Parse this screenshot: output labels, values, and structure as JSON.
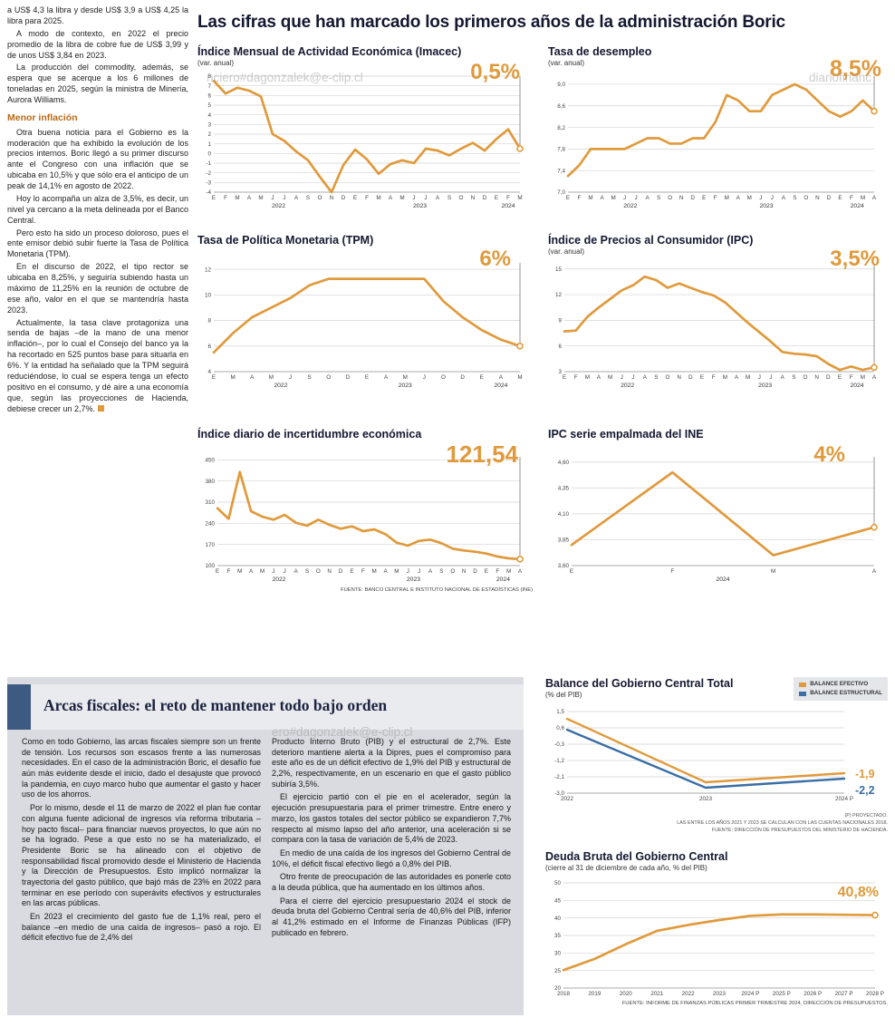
{
  "colors": {
    "orange": "#E09A3C",
    "blue": "#3B6EA5",
    "navy": "#141830",
    "heading_orange": "#b96a15"
  },
  "watermarks": {
    "w1": "nciero#dagonzalek@e-clip.cl",
    "w2": "diariofinanc",
    "w3": "ero#dagonzalek@e-clip.cl"
  },
  "left_article": {
    "p1": "a US$ 4,3 la libra y desde US$ 3,9 a US$ 4,25 la libra para 2025.",
    "p2": "A modo de contexto, en 2022 el precio promedio de la libra de cobre fue de US$ 3,99 y de unos US$ 3,84 en 2023.",
    "p3": "La producción del commodity, además, se espera que se acerque a los 6 millones de toneladas en 2025, según la ministra de Minería, Aurora Williams.",
    "subhead": "Menor inflación",
    "p4": "Otra buena noticia para el Gobierno es la moderación que ha exhibido la evolución de los precios internos. Boric llegó a su primer discurso ante el Congreso con una inflación que se ubicaba en 10,5% y que sólo era el anticipo de un peak de 14,1% en agosto de 2022.",
    "p5": "Hoy lo acompaña un alza de 3,5%, es decir, un nivel ya cercano a la meta delineada por el Banco Central.",
    "p6": "Pero esto ha sido un proceso doloroso, pues el ente emisor debió subir fuerte la Tasa de Política Monetaria (TPM).",
    "p7": "En el discurso de 2022, el tipo rector se ubicaba en 8,25%, y seguiría subiendo hasta un máximo de 11,25% en la reunión de octubre de ese año, valor en el que se mantendría hasta 2023.",
    "p8": "Actualmente, la tasa clave protagoniza una senda de bajas –de la mano de una menor inflación–, por lo cual el Consejo del banco ya la ha recortado en 525 puntos base para situarla en 6%. Y la entidad ha señalado que la TPM seguirá reduciéndose, lo cual se espera tenga un efecto positivo en el consumo, y dé aire a una economía que, según las proyecciones de Hacienda, debiese crecer un 2,7%."
  },
  "main_title": "Las cifras que han marcado los primeros años de la administración Boric",
  "source_top": "FUENTE: BANCO CENTRAL E INSTITUTO NACIONAL DE ESTADÍSTICAS (INE)",
  "fiscal": {
    "title": "Arcas fiscales: el reto de mantener todo bajo orden",
    "col1": [
      "Como en todo Gobierno, las arcas fiscales siempre son un frente de tensión. Los recursos son escasos frente a las numerosas necesidades. En el caso de la administración Boric, el desafío fue aún más evidente desde el inicio, dado el desajuste que provocó la pandemia, en cuyo marco hubo que aumentar el gasto y hacer uso de los ahorros.",
      "Por lo mismo, desde el 11 de marzo de 2022 el plan fue contar con alguna fuente adicional de ingresos vía reforma tributaria –hoy pacto fiscal– para financiar nuevos proyectos, lo que aún no se ha logrado. Pese a que esto no se ha materializado, el Presidente Boric se ha alineado con el objetivo de responsabilidad fiscal promovido desde el Ministerio de Hacienda y la Dirección de Presupuestos. Esto implicó normalizar la trayectoria del gasto público, que bajó más de 23% en 2022 para terminar en ese período con superávits efectivos y estructurales en las arcas públicas.",
      "En 2023 el crecimiento del gasto fue de 1,1% real, pero el balance –en medio de una caída de ingresos– pasó a rojo. El déficit efectivo fue de 2,4% del"
    ],
    "col2": [
      "Producto Interno Bruto (PIB) y el estructural de 2,7%. Este deterioro mantiene alerta a la Dipres, pues el compromiso para este año es de un déficit efectivo de 1,9% del PIB y estructural de 2,2%, respectivamente, en un escenario en que el gasto público subiría 3,5%.",
      "El ejercicio partió con el pie en el acelerador, según la ejecución presupuestaria para el primer trimestre. Entre enero y marzo, los gastos totales del sector público se expandieron 7,7% respecto al mismo lapso del año anterior, una aceleración si se compara con la tasa de variación de 5,4% de 2023.",
      "En medio de una caída de los ingresos del Gobierno Central de 10%, el déficit fiscal efectivo llegó a 0,8% del PIB.",
      "Otro frente de preocupación de las autoridades es ponerle coto a la deuda pública, que ha aumentado en los últimos años.",
      "Para el cierre del ejercicio presupuestario 2024 el stock de deuda bruta del Gobierno Central sería de 40,6% del PIB, inferior al 41,2% estimado en el Informe de Finanzas Públicas (IFP) publicado en febrero."
    ]
  },
  "chart_data": [
    {
      "type": "line",
      "title": "Índice Mensual de Actividad Económica (Imacec)",
      "subtitle": "(var. anual)",
      "value_label": "0,5%",
      "ylim": [
        -4,
        8
      ],
      "ml": 18,
      "marker_line": true,
      "yticks": [
        [
          8,
          "8"
        ],
        [
          7,
          "7"
        ],
        [
          6,
          "6"
        ],
        [
          5,
          "5"
        ],
        [
          4,
          "4"
        ],
        [
          3,
          "3"
        ],
        [
          2,
          "2"
        ],
        [
          1,
          "1"
        ],
        [
          0,
          "0"
        ],
        [
          -1,
          "-1"
        ],
        [
          -2,
          "-2"
        ],
        [
          -3,
          "-3"
        ],
        [
          -4,
          "-4"
        ]
      ],
      "xlabels": [
        "E",
        "F",
        "M",
        "A",
        "M",
        "J",
        "J",
        "A",
        "S",
        "O",
        "N",
        "D",
        "E",
        "F",
        "M",
        "A",
        "M",
        "J",
        "J",
        "A",
        "S",
        "O",
        "N",
        "D",
        "E",
        "F",
        "M"
      ],
      "years": [
        [
          "2022",
          5.5
        ],
        [
          "2023",
          17.5
        ],
        [
          "2024",
          25
        ]
      ],
      "series": [
        {
          "name": "Imacec",
          "color": "#E09A3C",
          "values": [
            7.5,
            6.2,
            6.8,
            6.5,
            5.9,
            2.0,
            1.3,
            0.2,
            -0.7,
            -2.4,
            -4.0,
            -1.2,
            0.4,
            -0.6,
            -2.1,
            -1.1,
            -0.7,
            -1.0,
            0.5,
            0.3,
            -0.2,
            0.5,
            1.1,
            0.3,
            1.5,
            2.5,
            0.5
          ]
        }
      ]
    },
    {
      "type": "line",
      "title": "Tasa de desempleo",
      "subtitle": "(var. anual)",
      "value_label": "8,5%",
      "ylim": [
        7.0,
        9.15
      ],
      "ml": 22,
      "marker_line": true,
      "yticks": [
        [
          9.0,
          "9,0"
        ],
        [
          8.6,
          "8,6"
        ],
        [
          8.2,
          "8,2"
        ],
        [
          7.8,
          "7,8"
        ],
        [
          7.4,
          "7,4"
        ],
        [
          7.0,
          "7,0"
        ]
      ],
      "xlabels": [
        "E",
        "F",
        "M",
        "A",
        "M",
        "J",
        "J",
        "A",
        "S",
        "O",
        "N",
        "D",
        "E",
        "F",
        "M",
        "A",
        "M",
        "J",
        "J",
        "A",
        "S",
        "O",
        "N",
        "D",
        "E",
        "F",
        "M",
        "A"
      ],
      "years": [
        [
          "2022",
          5.5
        ],
        [
          "2023",
          17.5
        ],
        [
          "2024",
          25.5
        ]
      ],
      "series": [
        {
          "name": "Desempleo",
          "color": "#E09A3C",
          "values": [
            7.3,
            7.5,
            7.8,
            7.8,
            7.8,
            7.8,
            7.9,
            8.0,
            8.0,
            7.9,
            7.9,
            8.0,
            8.0,
            8.3,
            8.8,
            8.7,
            8.5,
            8.5,
            8.8,
            8.9,
            9.0,
            8.9,
            8.7,
            8.5,
            8.4,
            8.5,
            8.7,
            8.5
          ]
        }
      ]
    },
    {
      "type": "line",
      "title": "Tasa de Política Monetaria (TPM)",
      "subtitle": "",
      "value_label": "6%",
      "ylim": [
        4,
        12.5
      ],
      "ml": 18,
      "marker_line": true,
      "yticks": [
        [
          12,
          "12"
        ],
        [
          10,
          "10"
        ],
        [
          8,
          "8"
        ],
        [
          6,
          "6"
        ],
        [
          4,
          "4"
        ]
      ],
      "xlabels": [
        "E",
        "M",
        "A",
        "M",
        "J",
        "S",
        "O",
        "D",
        "E",
        "A",
        "M",
        "J",
        "O",
        "D",
        "E",
        "A",
        "M"
      ],
      "years": [
        [
          "2022",
          3.5
        ],
        [
          "2023",
          10
        ],
        [
          "2024",
          15
        ]
      ],
      "series": [
        {
          "name": "TPM",
          "color": "#E09A3C",
          "values": [
            5.5,
            7.0,
            8.25,
            9.0,
            9.75,
            10.75,
            11.25,
            11.25,
            11.25,
            11.25,
            11.25,
            11.25,
            9.5,
            8.25,
            7.25,
            6.5,
            6.0
          ]
        }
      ]
    },
    {
      "type": "line",
      "title": "Índice de Precios al Consumidor (IPC)",
      "subtitle": "(var. anual)",
      "value_label": "3,5%",
      "ylim": [
        3,
        15.5
      ],
      "ml": 18,
      "marker_line": true,
      "yticks": [
        [
          15,
          "15"
        ],
        [
          12,
          "12"
        ],
        [
          9,
          "9"
        ],
        [
          6,
          "6"
        ],
        [
          3,
          "3"
        ]
      ],
      "xlabels": [
        "E",
        "F",
        "M",
        "A",
        "M",
        "J",
        "J",
        "A",
        "S",
        "O",
        "N",
        "D",
        "E",
        "F",
        "M",
        "A",
        "M",
        "J",
        "J",
        "A",
        "S",
        "O",
        "N",
        "D",
        "E",
        "F",
        "M",
        "A"
      ],
      "years": [
        [
          "2022",
          5.5
        ],
        [
          "2023",
          17.5
        ],
        [
          "2024",
          25.5
        ]
      ],
      "series": [
        {
          "name": "IPC",
          "color": "#E09A3C",
          "values": [
            7.7,
            7.8,
            9.4,
            10.5,
            11.5,
            12.5,
            13.1,
            14.1,
            13.7,
            12.8,
            13.3,
            12.8,
            12.3,
            11.9,
            11.1,
            9.9,
            8.7,
            7.6,
            6.5,
            5.3,
            5.1,
            5.0,
            4.8,
            3.9,
            3.2,
            3.6,
            3.2,
            3.5
          ]
        }
      ]
    },
    {
      "type": "line",
      "title": "Índice diario de incertidumbre económica",
      "subtitle": "",
      "value_label": "121,54",
      "ylim": [
        100,
        460
      ],
      "ml": 22,
      "marker_line": true,
      "yticks": [
        [
          450,
          "450"
        ],
        [
          380,
          "380"
        ],
        [
          310,
          "310"
        ],
        [
          240,
          "240"
        ],
        [
          170,
          "170"
        ],
        [
          100,
          "100"
        ]
      ],
      "xlabels": [
        "E",
        "F",
        "M",
        "A",
        "M",
        "J",
        "J",
        "A",
        "S",
        "O",
        "N",
        "D",
        "E",
        "F",
        "M",
        "A",
        "M",
        "J",
        "J",
        "A",
        "S",
        "O",
        "N",
        "D",
        "E",
        "F",
        "M",
        "A"
      ],
      "years": [
        [
          "2022",
          5.5
        ],
        [
          "2023",
          17.5
        ],
        [
          "2024",
          25.5
        ]
      ],
      "series": [
        {
          "name": "Incertidumbre",
          "color": "#E09A3C",
          "values": [
            290,
            255,
            410,
            280,
            262,
            252,
            268,
            242,
            232,
            252,
            235,
            222,
            230,
            214,
            220,
            204,
            176,
            166,
            182,
            186,
            174,
            156,
            150,
            146,
            140,
            130,
            124,
            121.54
          ]
        }
      ]
    },
    {
      "type": "line",
      "title": "IPC serie empalmada del INE",
      "subtitle": "",
      "value_label": "4%",
      "ylim": [
        3.6,
        4.65
      ],
      "ml": 26,
      "marker_line": true,
      "yticks": [
        [
          4.6,
          "4,60"
        ],
        [
          4.35,
          "4,35"
        ],
        [
          4.1,
          "4,10"
        ],
        [
          3.85,
          "3,85"
        ],
        [
          3.6,
          "3,60"
        ]
      ],
      "xlabels": [
        "E",
        "F",
        "M",
        "A"
      ],
      "years": [
        [
          "2024",
          1.5
        ]
      ],
      "series": [
        {
          "name": "IPC empalmado",
          "color": "#E09A3C",
          "values": [
            3.8,
            4.5,
            3.7,
            3.97
          ]
        }
      ]
    },
    {
      "type": "line",
      "title": "Balance del Gobierno Central Total",
      "subtitle": "(% del PIB)",
      "value_label": "",
      "end_labels": [
        "-1,9",
        "-2,2"
      ],
      "ylim": [
        -3.0,
        1.6
      ],
      "ml": 24,
      "mb": 18,
      "marker_line": false,
      "yticks": [
        [
          1.5,
          "1,5"
        ],
        [
          0.6,
          "0,6"
        ],
        [
          -0.3,
          "-0,3"
        ],
        [
          -1.2,
          "-1,2"
        ],
        [
          -2.1,
          "-2,1"
        ],
        [
          -3.0,
          "-3,0"
        ]
      ],
      "xlabels": [
        "2022",
        "2023",
        "2024 P"
      ],
      "years": [],
      "series": [
        {
          "name": "BALANCE EFECTIVO",
          "color": "#E09A3C",
          "width": 2.4,
          "marker": false,
          "values": [
            1.1,
            -2.4,
            -1.9
          ]
        },
        {
          "name": "BALANCE ESTRUCTURAL",
          "color": "#3B6EA5",
          "width": 2.4,
          "marker": false,
          "values": [
            0.5,
            -2.7,
            -2.2
          ]
        }
      ],
      "footnotes": [
        "(P) PROYECTADO.",
        "LAS ENTRE LOS AÑOS 2021 Y 2023 SE CALCULAN  CON LAS CUENTAS NACIONALES 2018.",
        "FUENTE: DIRECCIÓN DE PRESUPUESTOS DEL MINISTERIO DE HACIENDA."
      ]
    },
    {
      "type": "line",
      "title": "Deuda Bruta del Gobierno Central",
      "subtitle": "(cierre al 31 de diciembre de cada año, % del PIB)",
      "value_label": "40,8%",
      "ylim": [
        20,
        50
      ],
      "ml": 20,
      "mb": 14,
      "marker_line": false,
      "yticks": [
        [
          50,
          "50"
        ],
        [
          45,
          "45"
        ],
        [
          40,
          "40"
        ],
        [
          35,
          "35"
        ],
        [
          30,
          "30"
        ],
        [
          25,
          "25"
        ],
        [
          20,
          "20"
        ]
      ],
      "xlabels": [
        "2018",
        "2019",
        "2020",
        "2021",
        "2022",
        "2023",
        "2024 P",
        "2025 P",
        "2026 P",
        "2027 P",
        "2028 P"
      ],
      "years": [],
      "series": [
        {
          "name": "Deuda bruta",
          "color": "#E09A3C",
          "values": [
            25.1,
            28.3,
            32.5,
            36.3,
            38.0,
            39.4,
            40.6,
            41.0,
            41.0,
            40.9,
            40.8
          ]
        }
      ],
      "source": "FUENTE: INFORME DE FINANZAS PÚBLICAS PRIMER TRIMESTRE 2024, DIRECCIÓN DE PRESUPUESTOS."
    }
  ]
}
